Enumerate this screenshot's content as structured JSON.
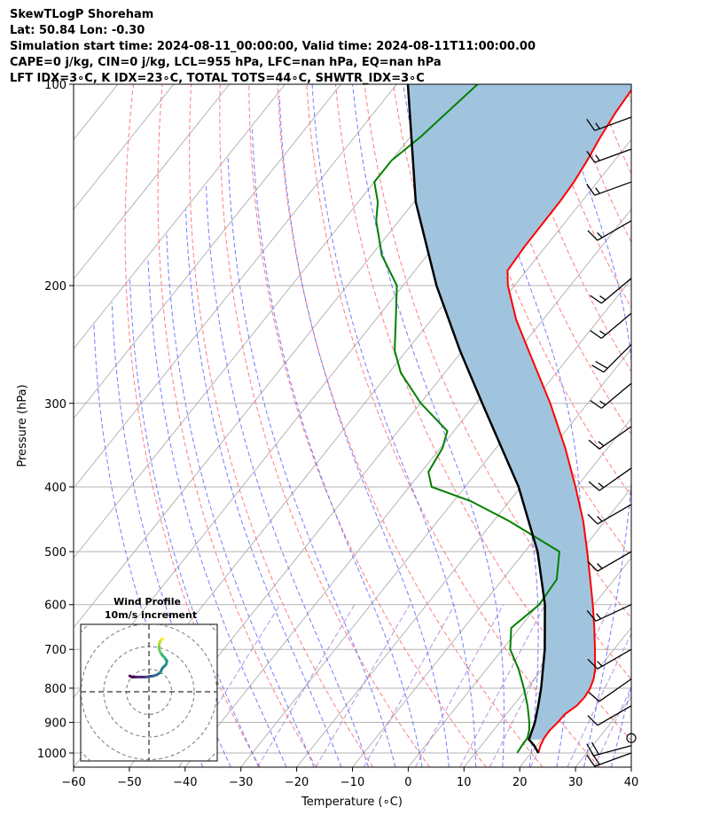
{
  "header": {
    "line1": "SkewTLogP Shoreham",
    "line2": "Lat: 50.84   Lon: -0.30",
    "line3": "Simulation start time: 2024-08-11_00:00:00, Valid time: 2024-08-11T11:00:00.00",
    "line4": "CAPE=0 j/kg, CIN=0 j/kg, LCL=955 hPa, LFC=nan hPa, EQ=nan hPa",
    "line5": "LFT IDX=3∘C, K IDX=23∘C, TOTAL TOTS=44∘C, SHWTR_IDX=3∘C"
  },
  "chart_data": {
    "type": "line",
    "subtype": "skew-t log-p",
    "xlabel": "Temperature (∘C)",
    "ylabel": "Pressure (hPa)",
    "xlim": [
      -60,
      40
    ],
    "ylim": [
      1050,
      100
    ],
    "y_scale": "log",
    "x_ticks": [
      -60,
      -50,
      -40,
      -30,
      -20,
      -10,
      0,
      10,
      20,
      30,
      40
    ],
    "x_tick_labels": [
      "−60",
      "−50",
      "−40",
      "−30",
      "−20",
      "−10",
      "0",
      "10",
      "20",
      "30",
      "40"
    ],
    "y_ticks": [
      1000,
      900,
      800,
      700,
      600,
      500,
      400,
      300,
      200,
      100
    ],
    "y_tick_labels": [
      "1000",
      "900",
      "800",
      "700",
      "600",
      "500",
      "400",
      "300",
      "200",
      "100"
    ],
    "grid": true,
    "colors": {
      "temperature": "#ff0000",
      "dewpoint": "#008000",
      "parcel": "#000000",
      "cape_fill": "#a1c4de",
      "dry_adiabats": "#ff6666",
      "moist_adiabats": "#4d5cff",
      "mixing_ratio": "#9966cc",
      "isotherms": "#b3b3b3"
    },
    "temperature": {
      "p": [
        1000,
        975,
        950,
        925,
        900,
        875,
        850,
        825,
        800,
        775,
        750,
        700,
        650,
        600,
        550,
        500,
        450,
        400,
        350,
        300,
        250,
        225,
        200,
        190,
        175,
        150,
        140,
        130,
        120,
        110,
        100
      ],
      "t": [
        21.3,
        20.6,
        20.2,
        20.1,
        20.4,
        20.5,
        21.4,
        21.6,
        21.3,
        20.6,
        19.5,
        16.6,
        13.4,
        9.8,
        5.7,
        1.2,
        -3.9,
        -10.2,
        -17.6,
        -26.7,
        -38.2,
        -44.8,
        -51.2,
        -53.4,
        -53.8,
        -53.9,
        -54.2,
        -54.9,
        -55.9,
        -56.7,
        -57.2
      ]
    },
    "dewpoint": {
      "p": [
        1000,
        975,
        950,
        925,
        900,
        850,
        800,
        750,
        700,
        650,
        600,
        550,
        500,
        450,
        420,
        400,
        380,
        350,
        330,
        300,
        270,
        250,
        230,
        200,
        180,
        160,
        150,
        140,
        130,
        120,
        100
      ],
      "td": [
        17.5,
        17.3,
        17.2,
        16.4,
        15.3,
        12.6,
        9.4,
        5.8,
        1.4,
        -1.5,
        0.2,
        -0.3,
        -3.8,
        -17.2,
        -27.0,
        -36.0,
        -38.7,
        -39.6,
        -41.2,
        -49.9,
        -57.9,
        -62.2,
        -65.5,
        -71.1,
        -78.2,
        -84.1,
        -86.5,
        -90.0,
        -90.0,
        -88.2,
        -85.5
      ]
    },
    "parcel": {
      "p": [
        1000,
        975,
        955,
        900,
        850,
        800,
        700,
        600,
        500,
        400,
        300,
        250,
        200,
        150,
        100
      ],
      "t": [
        21.3,
        19.5,
        17.7,
        16.3,
        14.5,
        12.5,
        7.6,
        1.2,
        -7.7,
        -20.4,
        -38.9,
        -50.5,
        -64.0,
        -79.7,
        -98.0
      ]
    },
    "winds": [
      {
        "p": 1000,
        "speed_kt": 20,
        "dir_deg": 250
      },
      {
        "p": 975,
        "speed_kt": 20,
        "dir_deg": 255
      },
      {
        "p": 950,
        "speed_kt": 0,
        "dir_deg": 0
      },
      {
        "p": 850,
        "speed_kt": 10,
        "dir_deg": 240
      },
      {
        "p": 775,
        "speed_kt": 10,
        "dir_deg": 235
      },
      {
        "p": 700,
        "speed_kt": 15,
        "dir_deg": 240
      },
      {
        "p": 600,
        "speed_kt": 15,
        "dir_deg": 245
      },
      {
        "p": 500,
        "speed_kt": 15,
        "dir_deg": 240
      },
      {
        "p": 425,
        "speed_kt": 15,
        "dir_deg": 240
      },
      {
        "p": 375,
        "speed_kt": 15,
        "dir_deg": 235
      },
      {
        "p": 325,
        "speed_kt": 15,
        "dir_deg": 235
      },
      {
        "p": 280,
        "speed_kt": 15,
        "dir_deg": 230
      },
      {
        "p": 245,
        "speed_kt": 20,
        "dir_deg": 225
      },
      {
        "p": 220,
        "speed_kt": 15,
        "dir_deg": 230
      },
      {
        "p": 195,
        "speed_kt": 15,
        "dir_deg": 230
      },
      {
        "p": 160,
        "speed_kt": 15,
        "dir_deg": 240
      },
      {
        "p": 140,
        "speed_kt": 15,
        "dir_deg": 250
      },
      {
        "p": 125,
        "speed_kt": 15,
        "dir_deg": 250
      },
      {
        "p": 112,
        "speed_kt": 15,
        "dir_deg": 250
      }
    ],
    "hodograph": {
      "title": "Wind Profile",
      "subtitle": "10m/s increment",
      "rings_ms": [
        10,
        20,
        30,
        40
      ],
      "u": [
        -8.5,
        -7.5,
        -5.5,
        -3.5,
        -1.5,
        0.5,
        2.0,
        3.5,
        5.0,
        6.0,
        7.5,
        8.0,
        7.0,
        6.0,
        5.0,
        4.5,
        4.5,
        5.0,
        5.5,
        6.0
      ],
      "v": [
        7.0,
        6.5,
        6.5,
        6.5,
        6.5,
        6.8,
        7.0,
        7.5,
        8.5,
        10.5,
        12.0,
        13.5,
        15.0,
        16.0,
        17.5,
        19.0,
        21.0,
        22.5,
        23.0,
        23.5
      ]
    }
  }
}
